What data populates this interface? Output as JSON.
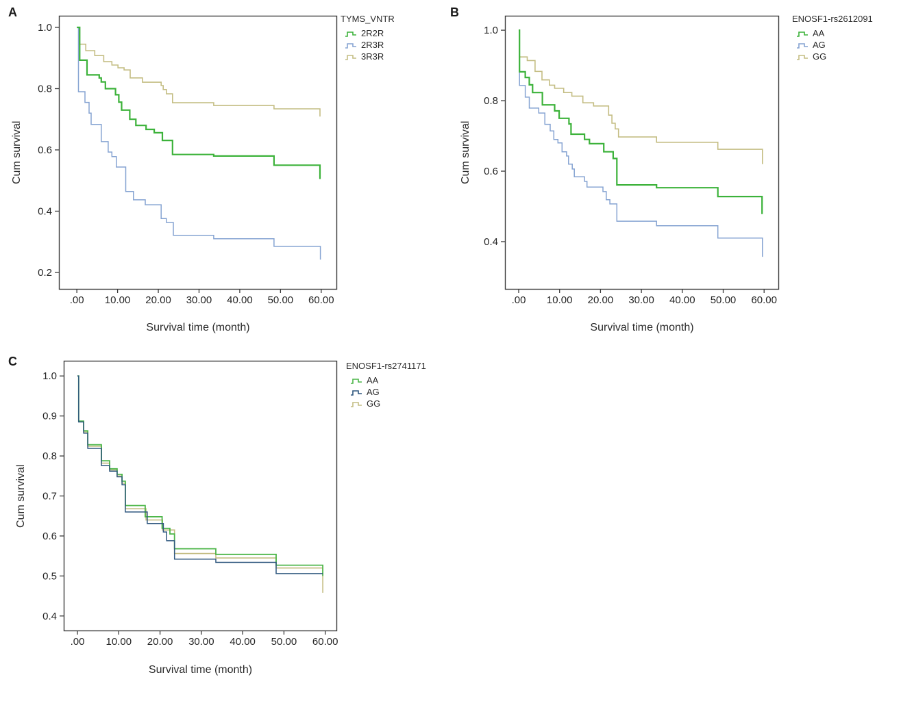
{
  "chart_data": [
    {
      "type": "line",
      "step": true,
      "panel_label": "A",
      "title": "TYMS_VNTR",
      "xlabel": "Survival time (month)",
      "ylabel": "Cum survival",
      "x_tick_labels": [
        ".00",
        "10.00",
        "20.00",
        "30.00",
        "40.00",
        "50.00",
        "60.00"
      ],
      "x_tick_values": [
        0,
        10,
        20,
        30,
        40,
        50,
        60
      ],
      "y_tick_labels": [
        "1.0",
        "0.8",
        "0.6",
        "0.4",
        "0.2"
      ],
      "y_tick_values": [
        1.0,
        0.8,
        0.6,
        0.4,
        0.2
      ],
      "xlim": [
        -4.4,
        63.9
      ],
      "ylim": [
        0.144,
        1.038
      ],
      "grid": false,
      "legend_position": "top-right-outside",
      "draw_order": [
        2,
        1,
        0
      ],
      "series": [
        {
          "name": "2R2R",
          "color": "#3cb23a",
          "width": 2.2,
          "points": [
            [
              0,
              1.0
            ],
            [
              0.7,
              0.893
            ],
            [
              2.5,
              0.845
            ],
            [
              5.5,
              0.835
            ],
            [
              6,
              0.822
            ],
            [
              7,
              0.8
            ],
            [
              9.5,
              0.78
            ],
            [
              10.3,
              0.756
            ],
            [
              11,
              0.73
            ],
            [
              13,
              0.7
            ],
            [
              14.5,
              0.68
            ],
            [
              17,
              0.667
            ],
            [
              19,
              0.656
            ],
            [
              21,
              0.631
            ],
            [
              23.5,
              0.585
            ],
            [
              33.6,
              0.58
            ],
            [
              48.4,
              0.55
            ],
            [
              59.7,
              0.505
            ]
          ]
        },
        {
          "name": "2R3R",
          "color": "#85a3d2",
          "width": 1.5,
          "points": [
            [
              0,
              1.0
            ],
            [
              0.4,
              0.79
            ],
            [
              2,
              0.755
            ],
            [
              3,
              0.72
            ],
            [
              3.5,
              0.683
            ],
            [
              6,
              0.627
            ],
            [
              7.7,
              0.593
            ],
            [
              8.6,
              0.578
            ],
            [
              9.7,
              0.544
            ],
            [
              12,
              0.464
            ],
            [
              13.9,
              0.437
            ],
            [
              16.8,
              0.421
            ],
            [
              20.7,
              0.376
            ],
            [
              22,
              0.363
            ],
            [
              23.7,
              0.321
            ],
            [
              33.6,
              0.31
            ],
            [
              48.4,
              0.285
            ],
            [
              59.8,
              0.242
            ]
          ]
        },
        {
          "name": "3R3R",
          "color": "#c4bd83",
          "width": 1.6,
          "points": [
            [
              0,
              1.0
            ],
            [
              0.5,
              0.945
            ],
            [
              2.2,
              0.924
            ],
            [
              4.4,
              0.908
            ],
            [
              6.6,
              0.888
            ],
            [
              8.6,
              0.877
            ],
            [
              10.1,
              0.868
            ],
            [
              11.6,
              0.861
            ],
            [
              13.1,
              0.835
            ],
            [
              16.1,
              0.821
            ],
            [
              20.7,
              0.81
            ],
            [
              21.2,
              0.797
            ],
            [
              22,
              0.783
            ],
            [
              23.5,
              0.754
            ],
            [
              33.6,
              0.745
            ],
            [
              48.4,
              0.734
            ],
            [
              59.7,
              0.709
            ]
          ]
        }
      ]
    },
    {
      "type": "line",
      "step": true,
      "panel_label": "B",
      "title": "ENOSF1-rs2612091",
      "xlabel": "Survival time (month)",
      "ylabel": "Cum survival",
      "x_tick_labels": [
        ".00",
        "10.00",
        "20.00",
        "30.00",
        "40.00",
        "50.00",
        "60.00"
      ],
      "x_tick_values": [
        0,
        10,
        20,
        30,
        40,
        50,
        60
      ],
      "y_tick_labels": [
        "1.0",
        "0.8",
        "0.6",
        "0.4"
      ],
      "y_tick_values": [
        1.0,
        0.8,
        0.6,
        0.4
      ],
      "xlim": [
        -3.35,
        63.65
      ],
      "ylim": [
        0.264,
        1.041
      ],
      "grid": false,
      "legend_position": "top-right-outside",
      "draw_order": [
        2,
        1,
        0
      ],
      "series": [
        {
          "name": "AA",
          "color": "#3cb23a",
          "width": 2.2,
          "points": [
            [
              0,
              1.0
            ],
            [
              0.2,
              0.882
            ],
            [
              1.6,
              0.866
            ],
            [
              2.6,
              0.845
            ],
            [
              3.4,
              0.823
            ],
            [
              5.8,
              0.788
            ],
            [
              8.8,
              0.771
            ],
            [
              9.9,
              0.75
            ],
            [
              12.3,
              0.734
            ],
            [
              12.8,
              0.705
            ],
            [
              16.1,
              0.69
            ],
            [
              17.3,
              0.678
            ],
            [
              20.8,
              0.655
            ],
            [
              23.1,
              0.636
            ],
            [
              24,
              0.561
            ],
            [
              33.7,
              0.553
            ],
            [
              48.7,
              0.528
            ],
            [
              59.5,
              0.478
            ]
          ]
        },
        {
          "name": "AG",
          "color": "#85a3d2",
          "width": 1.5,
          "points": [
            [
              0,
              1.0
            ],
            [
              0.2,
              0.843
            ],
            [
              1.6,
              0.81
            ],
            [
              2.6,
              0.779
            ],
            [
              4.9,
              0.765
            ],
            [
              6.4,
              0.733
            ],
            [
              7.7,
              0.714
            ],
            [
              8.6,
              0.69
            ],
            [
              9.6,
              0.68
            ],
            [
              10.6,
              0.655
            ],
            [
              11.7,
              0.643
            ],
            [
              12.2,
              0.62
            ],
            [
              13.1,
              0.606
            ],
            [
              13.6,
              0.584
            ],
            [
              16.1,
              0.571
            ],
            [
              16.7,
              0.555
            ],
            [
              20.6,
              0.542
            ],
            [
              21.4,
              0.519
            ],
            [
              22.3,
              0.507
            ],
            [
              24,
              0.458
            ],
            [
              33.7,
              0.445
            ],
            [
              48.7,
              0.41
            ],
            [
              59.6,
              0.357
            ]
          ]
        },
        {
          "name": "GG",
          "color": "#c4bd83",
          "width": 1.6,
          "points": [
            [
              0,
              1.0
            ],
            [
              0.2,
              0.924
            ],
            [
              2.1,
              0.914
            ],
            [
              4,
              0.883
            ],
            [
              5.7,
              0.859
            ],
            [
              7.5,
              0.844
            ],
            [
              8.8,
              0.835
            ],
            [
              11,
              0.823
            ],
            [
              13,
              0.813
            ],
            [
              15.7,
              0.794
            ],
            [
              18.3,
              0.785
            ],
            [
              22,
              0.759
            ],
            [
              22.8,
              0.736
            ],
            [
              23.6,
              0.72
            ],
            [
              24.4,
              0.697
            ],
            [
              33.7,
              0.682
            ],
            [
              48.7,
              0.662
            ],
            [
              59.6,
              0.62
            ]
          ]
        }
      ]
    },
    {
      "type": "line",
      "step": true,
      "panel_label": "C",
      "title": "ENOSF1-rs2741171",
      "xlabel": "Survival time (month)",
      "ylabel": "Cum survival",
      "x_tick_labels": [
        ".00",
        "10.00",
        "20.00",
        "30.00",
        "40.00",
        "50.00",
        "60.00"
      ],
      "x_tick_values": [
        0,
        10,
        20,
        30,
        40,
        50,
        60
      ],
      "y_tick_labels": [
        "1.0",
        "0.9",
        "0.8",
        "0.7",
        "0.6",
        "0.5",
        "0.4"
      ],
      "y_tick_values": [
        1.0,
        0.9,
        0.8,
        0.7,
        0.6,
        0.5,
        0.4
      ],
      "xlim": [
        -3.32,
        62.87
      ],
      "ylim": [
        0.362,
        1.038
      ],
      "grid": false,
      "legend_position": "top-right-outside",
      "draw_order": [
        2,
        0,
        1
      ],
      "series": [
        {
          "name": "AA",
          "color": "#4cb648",
          "width": 1.8,
          "points": [
            [
              0,
              1.0
            ],
            [
              0.3,
              0.887
            ],
            [
              1.5,
              0.863
            ],
            [
              2.5,
              0.828
            ],
            [
              5.8,
              0.788
            ],
            [
              7.8,
              0.768
            ],
            [
              9.6,
              0.754
            ],
            [
              10.8,
              0.737
            ],
            [
              11.6,
              0.676
            ],
            [
              16.4,
              0.648
            ],
            [
              20.5,
              0.619
            ],
            [
              22.4,
              0.605
            ],
            [
              23.5,
              0.568
            ],
            [
              33.5,
              0.554
            ],
            [
              48.1,
              0.527
            ],
            [
              59.4,
              0.5
            ]
          ]
        },
        {
          "name": "AG",
          "color": "#2f577f",
          "width": 1.5,
          "points": [
            [
              0,
              1.0
            ],
            [
              0.3,
              0.885
            ],
            [
              1.5,
              0.857
            ],
            [
              2.5,
              0.819
            ],
            [
              5.8,
              0.776
            ],
            [
              7.8,
              0.762
            ],
            [
              9.6,
              0.748
            ],
            [
              10.8,
              0.728
            ],
            [
              11.6,
              0.66
            ],
            [
              16.9,
              0.631
            ],
            [
              20.8,
              0.61
            ],
            [
              21.6,
              0.588
            ],
            [
              23.5,
              0.542
            ],
            [
              33.5,
              0.534
            ],
            [
              48.1,
              0.506
            ],
            [
              59.4,
              0.506
            ]
          ]
        },
        {
          "name": "GG",
          "color": "#c4bd83",
          "width": 1.6,
          "points": [
            [
              0,
              1.0
            ],
            [
              0.3,
              0.886
            ],
            [
              1.5,
              0.86
            ],
            [
              2.5,
              0.824
            ],
            [
              5.8,
              0.782
            ],
            [
              7.8,
              0.765
            ],
            [
              9.6,
              0.75
            ],
            [
              10.8,
              0.732
            ],
            [
              11.6,
              0.668
            ],
            [
              16.6,
              0.64
            ],
            [
              20.6,
              0.615
            ],
            [
              23.5,
              0.556
            ],
            [
              33.5,
              0.545
            ],
            [
              48.1,
              0.52
            ],
            [
              59.4,
              0.458
            ]
          ]
        }
      ]
    }
  ],
  "style": {
    "axis_color": "#3a3a3a",
    "tick_text_color": "#262626"
  }
}
